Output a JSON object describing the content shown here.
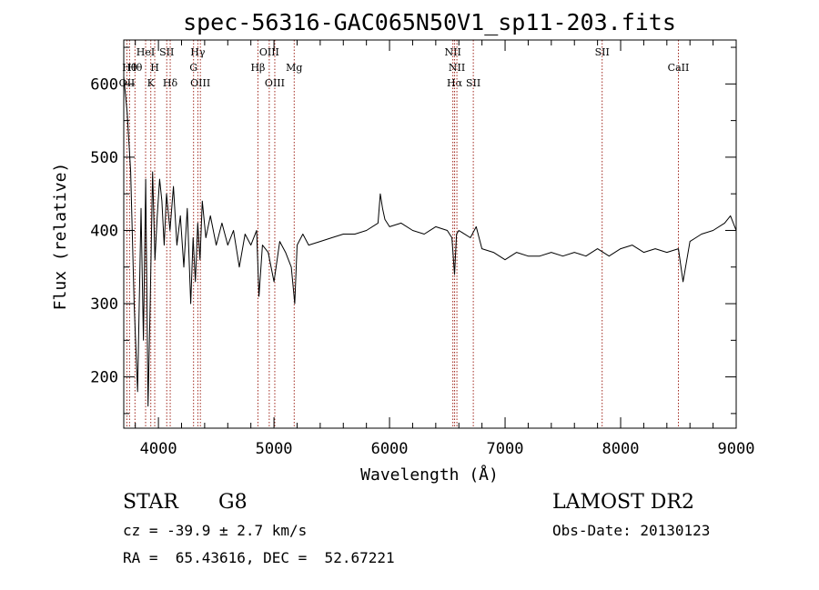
{
  "chart_data": {
    "type": "line",
    "title": "spec-56316-GAC065N50V1_sp11-203.fits",
    "xlabel": "Wavelength (Å)",
    "ylabel": "Flux (relative)",
    "xlim": [
      3700,
      9000
    ],
    "ylim": [
      130,
      660
    ],
    "xticks": [
      4000,
      5000,
      6000,
      7000,
      8000,
      9000
    ],
    "yticks": [
      200,
      300,
      400,
      500,
      600
    ],
    "series": [
      {
        "name": "spectrum",
        "x": [
          3700,
          3730,
          3760,
          3790,
          3820,
          3850,
          3870,
          3890,
          3910,
          3930,
          3950,
          3970,
          3990,
          4010,
          4030,
          4050,
          4070,
          4100,
          4130,
          4160,
          4190,
          4220,
          4250,
          4280,
          4300,
          4320,
          4340,
          4360,
          4380,
          4410,
          4450,
          4500,
          4550,
          4600,
          4650,
          4700,
          4750,
          4800,
          4850,
          4870,
          4900,
          4950,
          5000,
          5050,
          5100,
          5150,
          5180,
          5200,
          5250,
          5300,
          5400,
          5500,
          5600,
          5700,
          5800,
          5900,
          5920,
          5940,
          5960,
          6000,
          6100,
          6200,
          6300,
          6400,
          6500,
          6540,
          6563,
          6580,
          6600,
          6700,
          6750,
          6800,
          6900,
          7000,
          7100,
          7200,
          7300,
          7400,
          7500,
          7600,
          7700,
          7800,
          7900,
          8000,
          8100,
          8200,
          8300,
          8400,
          8500,
          8540,
          8600,
          8700,
          8800,
          8900,
          8950,
          9000
        ],
        "values": [
          610,
          560,
          480,
          300,
          180,
          430,
          250,
          470,
          160,
          310,
          480,
          360,
          420,
          470,
          440,
          380,
          450,
          400,
          460,
          380,
          420,
          350,
          430,
          300,
          390,
          330,
          410,
          360,
          440,
          390,
          420,
          380,
          410,
          380,
          400,
          350,
          395,
          380,
          400,
          310,
          380,
          370,
          330,
          385,
          370,
          350,
          300,
          380,
          395,
          380,
          385,
          390,
          395,
          395,
          400,
          410,
          450,
          430,
          415,
          405,
          410,
          400,
          395,
          405,
          400,
          390,
          340,
          395,
          400,
          390,
          405,
          375,
          370,
          360,
          370,
          365,
          365,
          370,
          365,
          370,
          365,
          375,
          365,
          375,
          380,
          370,
          375,
          370,
          375,
          330,
          385,
          395,
          400,
          410,
          420,
          400
        ]
      }
    ],
    "lines": [
      {
        "x": 3750,
        "label": "Hθ",
        "row": 2
      },
      {
        "x": 3797,
        "label": "Hθ",
        "row": 2
      },
      {
        "x": 3727,
        "label": "OII",
        "row": 4
      },
      {
        "x": 3889,
        "label": "HeI",
        "row": 1
      },
      {
        "x": 3934,
        "label": "K",
        "row": 4
      },
      {
        "x": 3968,
        "label": "H",
        "row": 2
      },
      {
        "x": 4072,
        "label": "SII",
        "row": 1
      },
      {
        "x": 4102,
        "label": "Hδ",
        "row": 4
      },
      {
        "x": 4304,
        "label": "G",
        "row": 2
      },
      {
        "x": 4341,
        "label": "Hγ",
        "row": 1
      },
      {
        "x": 4363,
        "label": "OIII",
        "row": 4
      },
      {
        "x": 4861,
        "label": "Hβ",
        "row": 2
      },
      {
        "x": 4959,
        "label": "OIII",
        "row": 1
      },
      {
        "x": 5007,
        "label": "OIII",
        "row": 4
      },
      {
        "x": 5175,
        "label": "Mg",
        "row": 2
      },
      {
        "x": 6548,
        "label": "NII",
        "row": 1
      },
      {
        "x": 6563,
        "label": "Hα",
        "row": 4
      },
      {
        "x": 6583,
        "label": "NII",
        "row": 2
      },
      {
        "x": 6725,
        "label": "SII",
        "row": 4
      },
      {
        "x": 7840,
        "label": "SII",
        "row": 1
      },
      {
        "x": 8500,
        "label": "CaII",
        "row": 2
      }
    ]
  },
  "info": {
    "object_class": "STAR",
    "subclass": "G8",
    "survey": "LAMOST DR2",
    "cz": "cz = -39.9 ± 2.7 km/s",
    "obs_date": "Obs-Date: 20130123",
    "coords": "RA =  65.43616, DEC =  52.67221"
  }
}
